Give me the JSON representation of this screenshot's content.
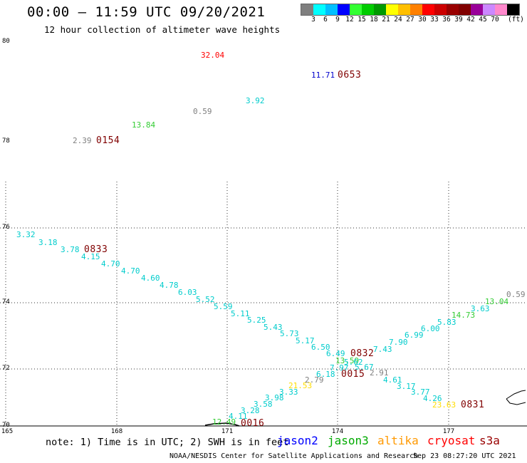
{
  "header": {
    "title": "00:00 — 11:59 UTC 09/20/2021",
    "subtitle": "12 hour collection of altimeter wave heights"
  },
  "colorbar": {
    "colors": [
      "#7f7f7f",
      "#00ffff",
      "#00bfff",
      "#0000ff",
      "#33ff33",
      "#00cc00",
      "#009900",
      "#ffff00",
      "#ffbf00",
      "#ff8000",
      "#ff0000",
      "#cc0000",
      "#990000",
      "#800000",
      "#990099",
      "#cc88ff",
      "#ff88cc",
      "#000000"
    ],
    "labels": [
      "3",
      "6",
      "9",
      "12",
      "15",
      "18",
      "21",
      "24",
      "27",
      "30",
      "33",
      "36",
      "39",
      "42",
      "45",
      "70"
    ],
    "units": "(ft)"
  },
  "map": {
    "lat_labels": [
      "80",
      "78",
      "76",
      "74",
      "72",
      "70"
    ],
    "lon_labels": [
      "165",
      "168",
      "171",
      "174",
      "177"
    ]
  },
  "wave_heights": [
    {
      "text": "32.04",
      "color": "#ff0000"
    },
    {
      "text": "11.71",
      "color": "#0000cc"
    },
    {
      "text": "3.92",
      "color": "#00cccc"
    },
    {
      "text": "0.59",
      "color": "#7f7f7f"
    },
    {
      "text": "13.84",
      "color": "#33cc33"
    },
    {
      "text": "2.39",
      "color": "#7f7f7f"
    },
    {
      "text": "3.32",
      "color": "#00cccc"
    },
    {
      "text": "3.18",
      "color": "#00cccc"
    },
    {
      "text": "3.78",
      "color": "#00cccc"
    },
    {
      "text": "4.15",
      "color": "#00cccc"
    },
    {
      "text": "4.70",
      "color": "#00cccc"
    },
    {
      "text": "4.70",
      "color": "#00cccc"
    },
    {
      "text": "4.60",
      "color": "#00cccc"
    },
    {
      "text": "4.78",
      "color": "#00cccc"
    },
    {
      "text": "6.03",
      "color": "#00cccc"
    },
    {
      "text": "5.52",
      "color": "#00cccc"
    },
    {
      "text": "5.59",
      "color": "#00cccc"
    },
    {
      "text": "5.11",
      "color": "#00cccc"
    },
    {
      "text": "5.25",
      "color": "#00cccc"
    },
    {
      "text": "5.43",
      "color": "#00cccc"
    },
    {
      "text": "5.73",
      "color": "#00cccc"
    },
    {
      "text": "5.17",
      "color": "#00cccc"
    },
    {
      "text": "6.50",
      "color": "#00cccc"
    },
    {
      "text": "6.49",
      "color": "#00cccc"
    },
    {
      "text": "13.59",
      "color": "#33cc33"
    },
    {
      "text": "5.62",
      "color": "#00cccc"
    },
    {
      "text": "7.97",
      "color": "#00cccc"
    },
    {
      "text": "5.67",
      "color": "#00cccc"
    },
    {
      "text": "4.61",
      "color": "#00cccc"
    },
    {
      "text": "3.17",
      "color": "#00cccc"
    },
    {
      "text": "3.77",
      "color": "#00cccc"
    },
    {
      "text": "4.26",
      "color": "#00cccc"
    },
    {
      "text": "23.63",
      "color": "#ffdd00"
    },
    {
      "text": "0.59",
      "color": "#7f7f7f"
    },
    {
      "text": "13.04",
      "color": "#33cc33"
    },
    {
      "text": "3.63",
      "color": "#00cccc"
    },
    {
      "text": "14.73",
      "color": "#33cc33"
    },
    {
      "text": "5.83",
      "color": "#00cccc"
    },
    {
      "text": "6.00",
      "color": "#00cccc"
    },
    {
      "text": "6.99",
      "color": "#00cccc"
    },
    {
      "text": "7.90",
      "color": "#00cccc"
    },
    {
      "text": "7.43",
      "color": "#00cccc"
    },
    {
      "text": "6.18",
      "color": "#00cccc"
    },
    {
      "text": "2.79",
      "color": "#7f7f7f"
    },
    {
      "text": "2.91",
      "color": "#7f7f7f"
    },
    {
      "text": "21.53",
      "color": "#ffdd00"
    },
    {
      "text": "3.33",
      "color": "#00cccc"
    },
    {
      "text": "3.98",
      "color": "#00cccc"
    },
    {
      "text": "3.58",
      "color": "#00cccc"
    },
    {
      "text": "3.28",
      "color": "#00cccc"
    },
    {
      "text": "4.11",
      "color": "#00cccc"
    },
    {
      "text": "12.49",
      "color": "#33cc33"
    }
  ],
  "time_labels": [
    "0653",
    "0154",
    "0833",
    "0832",
    "0015",
    "0831",
    "0016"
  ],
  "footer": {
    "note": "note: 1) Time is in UTC; 2) SWH is in feet",
    "legend": [
      {
        "label": "jason2",
        "color": "#0000ff"
      },
      {
        "label": "jason3",
        "color": "#00aa00"
      },
      {
        "label": "altika",
        "color": "#ff9900"
      },
      {
        "label": "cryosat",
        "color": "#ff0000"
      },
      {
        "label": "s3a",
        "color": "#990000"
      }
    ],
    "credit": "NOAA/NESDIS Center for Satellite Applications and Research",
    "timestamp": "Sep 23 08:27:20 UTC 2021"
  }
}
